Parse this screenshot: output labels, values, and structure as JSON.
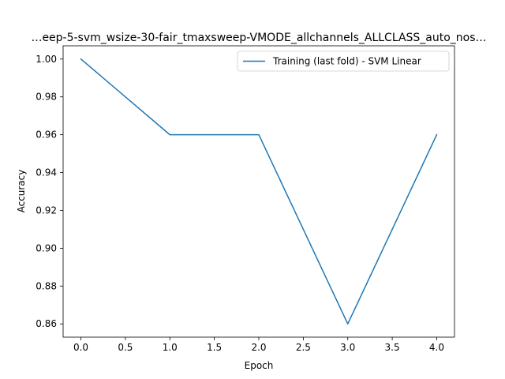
{
  "chart_data": {
    "type": "line",
    "title": "…eep-5-svm_wsize-30-fair_tmaxsweep-VMODE_allchannels_ALLCLASS_auto_nos…",
    "xlabel": "Epoch",
    "ylabel": "Accuracy",
    "xlim": [
      -0.2,
      4.2
    ],
    "ylim": [
      0.853,
      1.007
    ],
    "x_ticks": [
      0.0,
      0.5,
      1.0,
      1.5,
      2.0,
      2.5,
      3.0,
      3.5,
      4.0
    ],
    "x_tick_labels": [
      "0.0",
      "0.5",
      "1.0",
      "1.5",
      "2.0",
      "2.5",
      "3.0",
      "3.5",
      "4.0"
    ],
    "y_ticks": [
      0.86,
      0.88,
      0.9,
      0.92,
      0.94,
      0.96,
      0.98,
      1.0
    ],
    "y_tick_labels": [
      "0.86",
      "0.88",
      "0.90",
      "0.92",
      "0.94",
      "0.96",
      "0.98",
      "1.00"
    ],
    "grid": false,
    "legend_position": "top-right",
    "series": [
      {
        "name": "Training (last fold) - SVM Linear",
        "color": "#1f77b4",
        "x": [
          0,
          1,
          2,
          3,
          4
        ],
        "values": [
          1.0,
          0.96,
          0.96,
          0.86,
          0.96
        ]
      }
    ]
  }
}
